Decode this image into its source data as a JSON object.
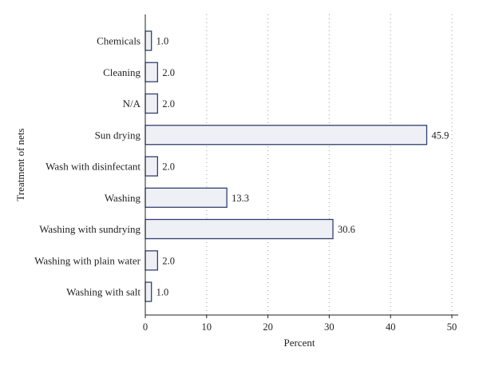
{
  "chart_data": {
    "type": "bar",
    "orientation": "horizontal",
    "categories": [
      "Chemicals",
      "Cleaning",
      "N/A",
      "Sun drying",
      "Wash with disinfectant",
      "Washing",
      "Washing with sundrying",
      "Washing with plain water",
      "Washing with salt"
    ],
    "values": [
      1.0,
      2.0,
      2.0,
      45.9,
      2.0,
      13.3,
      30.6,
      2.0,
      1.0
    ],
    "value_labels": [
      "1.0",
      "2.0",
      "2.0",
      "45.9",
      "2.0",
      "13.3",
      "30.6",
      "2.0",
      "1.0"
    ],
    "title": "",
    "xlabel": "Percent",
    "ylabel": "Treatment of nets",
    "xlim": [
      0,
      50
    ],
    "xticks": [
      "0",
      "10",
      "20",
      "30",
      "40",
      "50"
    ],
    "grid": "vertical dotted",
    "legend": "none",
    "colors": {
      "bar_fill": "#eef0f6",
      "bar_stroke": "#33406e"
    }
  }
}
